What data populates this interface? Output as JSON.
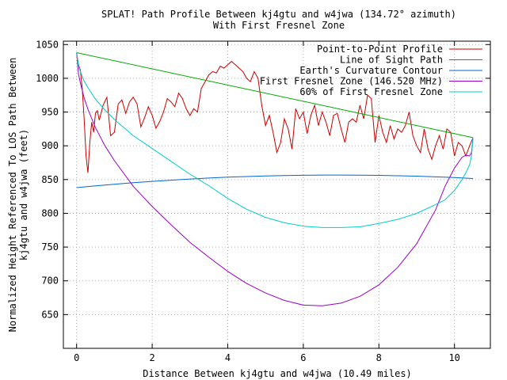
{
  "chart_data": {
    "type": "line",
    "title": "SPLAT! Path Profile Between kj4gtu and w4jwa (134.72° azimuth)",
    "subtitle": "With First Fresnel Zone",
    "xlabel": "Distance Between kj4gtu and w4jwa (10.49 miles)",
    "ylabel": "Normalized Height Referenced To LOS Path Between kj4gtu and w4jwa (feet)",
    "ylabel_lines": [
      "Normalized Height Referenced To LOS Path Between",
      "kj4gtu and w4jwa (feet)"
    ],
    "xlim": [
      -0.35,
      10.95
    ],
    "ylim": [
      600,
      1055
    ],
    "xticks": [
      0,
      2,
      4,
      6,
      8,
      10
    ],
    "yticks": [
      650,
      700,
      750,
      800,
      850,
      900,
      950,
      1000,
      1050
    ],
    "grid": true,
    "legend_position": "top-right",
    "series": [
      {
        "name": "Point-to-Point Profile",
        "color": "#cc0000",
        "x": [
          0.0,
          0.05,
          0.1,
          0.15,
          0.2,
          0.25,
          0.3,
          0.35,
          0.4,
          0.45,
          0.5,
          0.55,
          0.6,
          0.7,
          0.8,
          0.9,
          1.0,
          1.1,
          1.2,
          1.3,
          1.4,
          1.5,
          1.6,
          1.7,
          1.8,
          1.9,
          2.0,
          2.1,
          2.2,
          2.3,
          2.4,
          2.5,
          2.6,
          2.7,
          2.8,
          2.9,
          3.0,
          3.1,
          3.2,
          3.3,
          3.4,
          3.5,
          3.6,
          3.7,
          3.8,
          3.9,
          4.0,
          4.1,
          4.2,
          4.3,
          4.4,
          4.5,
          4.6,
          4.7,
          4.8,
          4.9,
          5.0,
          5.1,
          5.2,
          5.3,
          5.4,
          5.5,
          5.6,
          5.7,
          5.8,
          5.9,
          6.0,
          6.1,
          6.2,
          6.3,
          6.4,
          6.5,
          6.6,
          6.7,
          6.8,
          6.9,
          7.0,
          7.1,
          7.2,
          7.3,
          7.4,
          7.5,
          7.6,
          7.7,
          7.8,
          7.9,
          8.0,
          8.1,
          8.2,
          8.3,
          8.4,
          8.5,
          8.6,
          8.7,
          8.8,
          8.9,
          9.0,
          9.1,
          9.2,
          9.3,
          9.4,
          9.5,
          9.6,
          9.7,
          9.8,
          9.9,
          10.0,
          10.1,
          10.2,
          10.3,
          10.4,
          10.49
        ],
        "y": [
          1038,
          1020,
          1012,
          985,
          940,
          885,
          860,
          905,
          935,
          920,
          948,
          952,
          938,
          960,
          972,
          915,
          920,
          962,
          968,
          948,
          965,
          972,
          962,
          928,
          942,
          958,
          945,
          926,
          936,
          950,
          970,
          965,
          958,
          978,
          970,
          955,
          945,
          955,
          950,
          985,
          995,
          1005,
          1010,
          1008,
          1018,
          1015,
          1020,
          1025,
          1020,
          1015,
          1010,
          1000,
          995,
          1010,
          1000,
          960,
          930,
          945,
          920,
          890,
          905,
          940,
          925,
          895,
          955,
          940,
          950,
          918,
          945,
          960,
          930,
          950,
          935,
          915,
          945,
          948,
          925,
          905,
          935,
          940,
          935,
          960,
          940,
          975,
          970,
          905,
          945,
          920,
          905,
          930,
          910,
          925,
          920,
          930,
          950,
          915,
          900,
          890,
          925,
          895,
          880,
          900,
          915,
          895,
          925,
          920,
          885,
          905,
          900,
          885,
          900,
          912
        ]
      },
      {
        "name": "Line of Sight Path",
        "color": "#00aa00",
        "x": [
          0.0,
          10.49
        ],
        "y": [
          1038,
          912
        ]
      },
      {
        "name": "Earth's Curvature Contour",
        "color": "#0066cc",
        "x": [
          0.0,
          0.5,
          1.0,
          1.5,
          2.0,
          2.5,
          3.0,
          3.5,
          4.0,
          4.5,
          5.0,
          5.5,
          6.0,
          6.5,
          7.0,
          7.5,
          8.0,
          8.5,
          9.0,
          9.5,
          10.0,
          10.49
        ],
        "y": [
          838,
          840.6,
          843.0,
          845.3,
          847.3,
          849.1,
          850.8,
          852.2,
          853.5,
          854.5,
          855.3,
          856.0,
          856.4,
          856.7,
          856.7,
          856.6,
          856.2,
          855.7,
          855.0,
          854.0,
          852.9,
          851.5
        ]
      },
      {
        "name": "First Fresnel Zone (146.520 MHz)",
        "color": "#9900cc",
        "x": [
          0.0,
          0.05,
          0.1,
          0.2,
          0.3,
          0.5,
          0.75,
          1.0,
          1.5,
          2.0,
          2.5,
          3.0,
          3.5,
          4.0,
          4.5,
          5.0,
          5.5,
          6.0,
          6.5,
          7.0,
          7.5,
          8.0,
          8.5,
          9.0,
          9.5,
          9.75,
          10.0,
          10.2,
          10.3,
          10.4,
          10.45,
          10.49
        ],
        "y": [
          1038,
          1006,
          993,
          971,
          954,
          927,
          900,
          878,
          840,
          810,
          783,
          757,
          735,
          714,
          696,
          682,
          671,
          664,
          663,
          667,
          677,
          694,
          720,
          755,
          805,
          840,
          867,
          883,
          886,
          885,
          890,
          912
        ]
      },
      {
        "name": "60% of First Fresnel Zone",
        "color": "#00cccc",
        "x": [
          0.0,
          0.05,
          0.1,
          0.2,
          0.3,
          0.5,
          0.75,
          1.0,
          1.5,
          2.0,
          2.5,
          3.0,
          3.5,
          4.0,
          4.5,
          5.0,
          5.5,
          6.0,
          6.5,
          7.0,
          7.5,
          8.0,
          8.5,
          9.0,
          9.5,
          9.75,
          10.0,
          10.2,
          10.3,
          10.4,
          10.45,
          10.49
        ],
        "y": [
          1038,
          1018,
          1010,
          996,
          986,
          969,
          953,
          939,
          915,
          896,
          877,
          858,
          841,
          822,
          806,
          794,
          786,
          781,
          779,
          779,
          780,
          785,
          791,
          800,
          813,
          820,
          834,
          850,
          860,
          872,
          885,
          912
        ]
      }
    ]
  }
}
